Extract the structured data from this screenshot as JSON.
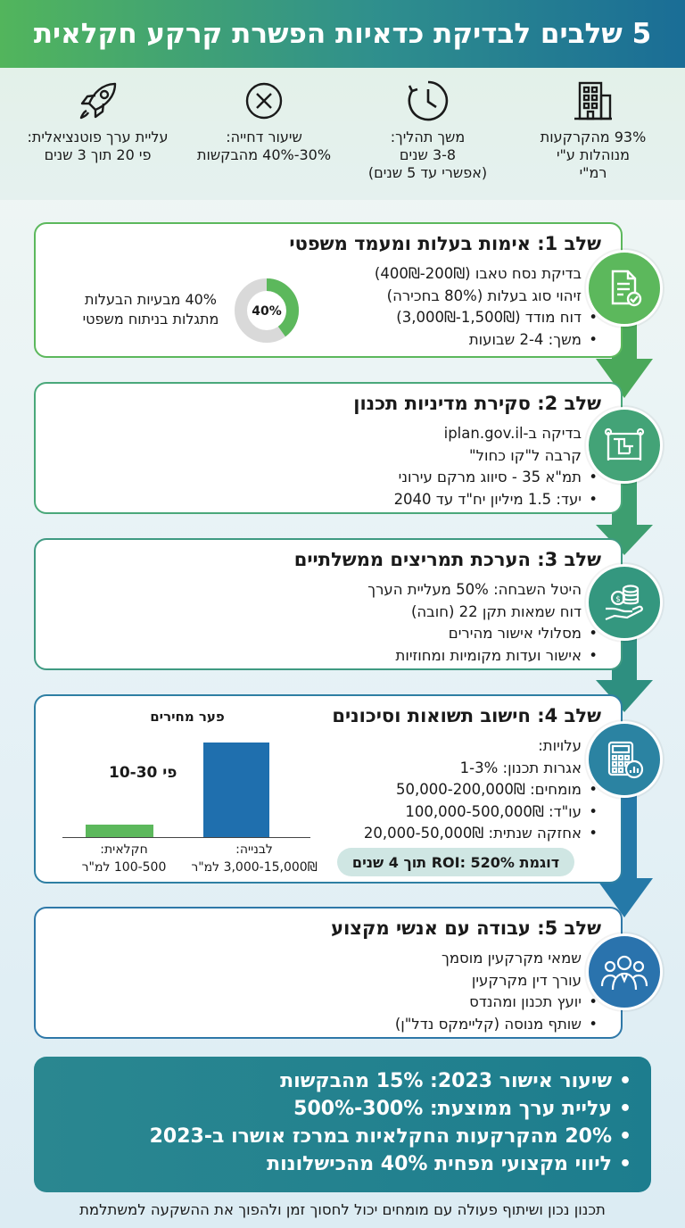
{
  "header": {
    "title": "5 שלבים לבדיקת כדאיות הפשרת קרקע חקלאית"
  },
  "stats": [
    {
      "icon": "building-icon",
      "lines": [
        "93% מהקרקעות",
        "מנוהלות ע\"י",
        "רמ\"י"
      ]
    },
    {
      "icon": "clock-icon",
      "lines": [
        "משך תהליך:",
        "3-8 שנים",
        "(אפשרי עד 5 שנים)"
      ]
    },
    {
      "icon": "x-circle-icon",
      "lines": [
        "שיעור דחייה:",
        "30%-40% מהבקשות"
      ]
    },
    {
      "icon": "rocket-icon",
      "lines": [
        "עליית ערך פוטנציאלית:",
        "פי 20 תוך 3 שנים"
      ]
    }
  ],
  "steps": {
    "s1": {
      "title": "שלב 1: אימות בעלות ומעמד משפטי",
      "items": [
        "בדיקת נסח טאבו (200₪-400₪)",
        "זיהוי סוג בעלות (80% בחכירה)",
        "דוח מודד (1,500₪-3,000₪)",
        "משך: 2-4 שבועות"
      ],
      "donut_label": "40%",
      "donut_value": 40,
      "side_lines": [
        "40% מבעיות הבעלות",
        "מתגלות בניתוח משפטי"
      ],
      "icon": "document-check-icon"
    },
    "s2": {
      "title": "שלב 2: סקירת מדיניות תכנון",
      "items": [
        "בדיקה ב-iplan.gov.il",
        "קרבה ל\"קו כחול\"",
        "תמ\"א 35 - סיווג מרקם עירוני",
        "יעד: 1.5 מיליון יח\"ד עד 2040"
      ],
      "icon": "map-blueprint-icon"
    },
    "s3": {
      "title": "שלב 3: הערכת תמריצים ממשלתיים",
      "items": [
        "היטל השבחה: 50% מעליית הערך",
        "דוח שמאות תקן 22 (חובה)",
        "מסלולי אישור מהירים",
        "אישור ועדות מקומיות ומחוזיות"
      ],
      "icon": "coins-hand-icon"
    },
    "s4": {
      "title": "שלב 4: חישוב תשואות וסיכונים",
      "items": [
        "עלויות:",
        "אגרות תכנון: 1-3%",
        "מומחים: 50,000-200,000₪",
        "עו\"ד: 100,000-500,000₪",
        "אחזקה שנתית: 20,000-50,000₪"
      ],
      "roi": "דוגמת ROI: 520% תוך 4 שנים",
      "icon": "calculator-icon"
    },
    "s5": {
      "title": "שלב 5: עבודה עם אנשי מקצוע",
      "items": [
        "שמאי מקרקעין מוסמך",
        "עורך דין מקרקעין",
        "יועץ תכנון ומהנדס",
        "שותף מנוסה (קליימקס נדל\"ן)"
      ],
      "icon": "team-icon"
    }
  },
  "chart_data": {
    "type": "bar",
    "title": "פער מחירים",
    "annotation": "פי 10-30",
    "categories": [
      {
        "lines": [
          "לבנייה:",
          "3,000-15,000₪ למ\"ר"
        ]
      },
      {
        "lines": [
          "חקלאית:",
          "100-500 למ\"ר"
        ]
      }
    ],
    "values": [
      15000,
      500
    ],
    "colors": [
      "#1f6fae",
      "#5cb85c"
    ]
  },
  "summary": {
    "items": [
      "שיעור אישור 2023: 15% מהבקשות",
      "עליית ערך ממוצעת: 300%-500%",
      "20% מהקרקעות החקלאיות במרכז אושרו ב-2023",
      "ליווי מקצועי מפחית 40% מהכישלונות"
    ]
  },
  "footer": {
    "text": "תכנון נכון ושיתוף פעולה עם מומחים יכול לחסוך זמן ולהפוך את ההשקעה למשתלמת"
  }
}
